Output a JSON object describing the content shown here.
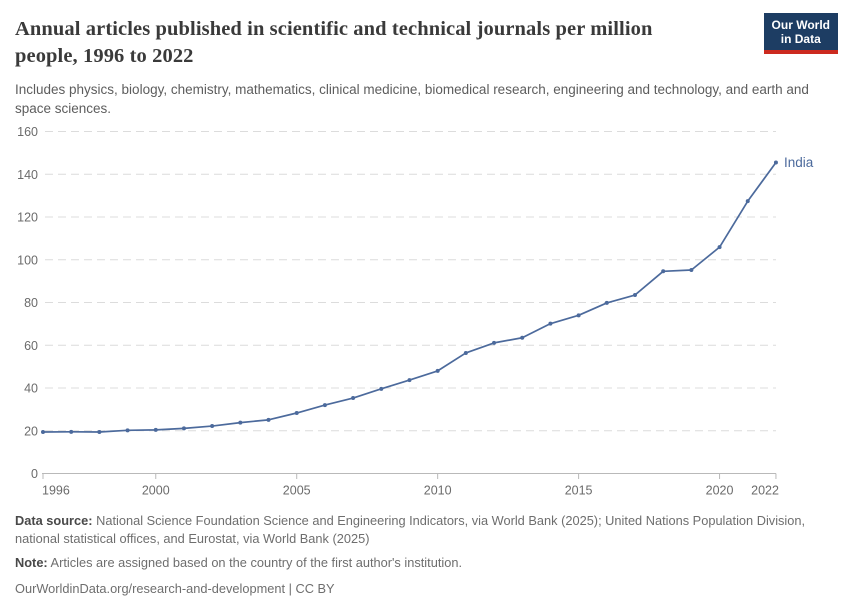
{
  "header": {
    "title": "Annual articles published in scientific and technical journals per million people, 1996 to 2022",
    "subtitle": "Includes physics, biology, chemistry, mathematics, clinical medicine, biomedical research, engineering and technology, and earth and space sciences.",
    "logo": {
      "line1": "Our World",
      "line2": "in Data"
    }
  },
  "chart_data": {
    "type": "line",
    "title": "Annual articles published in scientific and technical journals per million people, 1996 to 2022",
    "xlabel": "",
    "ylabel": "",
    "xlim": [
      1996,
      2022
    ],
    "ylim": [
      0,
      160
    ],
    "grid": "horizontal-dashed",
    "legend_position": "end-of-line-label",
    "x_ticks": [
      1996,
      2000,
      2005,
      2010,
      2015,
      2020,
      2022
    ],
    "y_ticks": [
      0,
      20,
      40,
      60,
      80,
      100,
      120,
      140,
      160
    ],
    "series": [
      {
        "name": "India",
        "color": "#4c6a9c",
        "x": [
          1996,
          1997,
          1998,
          1999,
          2000,
          2001,
          2002,
          2003,
          2004,
          2005,
          2006,
          2007,
          2008,
          2009,
          2010,
          2011,
          2012,
          2013,
          2014,
          2015,
          2016,
          2017,
          2018,
          2019,
          2020,
          2021,
          2022
        ],
        "values": [
          19.4,
          19.5,
          19.4,
          20.2,
          20.4,
          21.1,
          22.2,
          23.8,
          25.1,
          28.3,
          32.0,
          35.3,
          39.6,
          43.7,
          48.0,
          56.4,
          61.1,
          63.5,
          70.1,
          74.0,
          79.8,
          83.5,
          94.6,
          95.2,
          105.9,
          127.4,
          145.5
        ]
      }
    ]
  },
  "footer": {
    "datasource_label": "Data source:",
    "datasource_text": " National Science Foundation Science and Engineering Indicators, via World Bank (2025); United Nations Population Division, national statistical offices, and Eurostat, via World Bank (2025)",
    "note_label": "Note:",
    "note_text": " Articles are assigned based on the country of the first author's institution.",
    "citation": "OurWorldinData.org/research-and-development | CC BY"
  },
  "colors": {
    "line": "#4c6a9c",
    "grid": "#dcdcdc",
    "axis": "#b9b9b9",
    "tick_text": "#6b6b6b",
    "title_text": "#3a3a3a",
    "logo_bg": "#1d3d63",
    "logo_stripe": "#cc2a1f"
  }
}
